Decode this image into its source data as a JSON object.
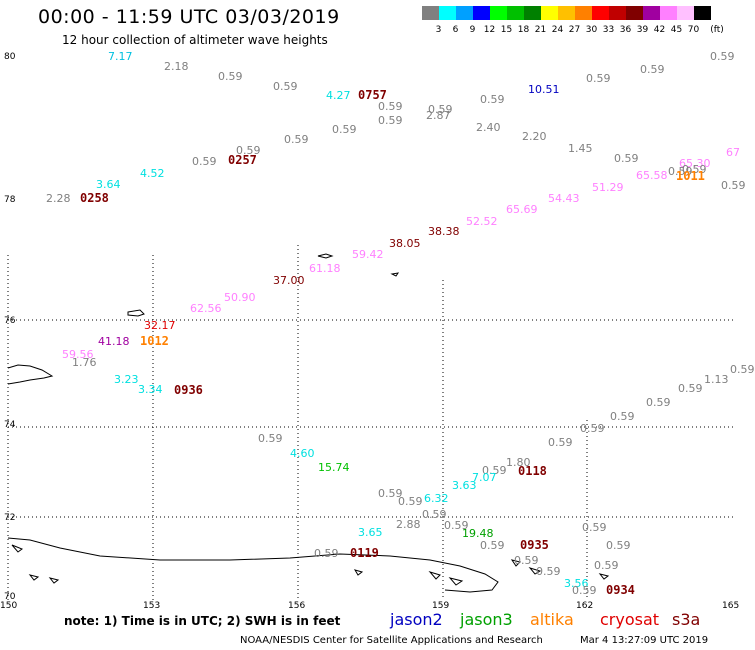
{
  "title": "00:00 - 11:59 UTC 03/03/2019",
  "subtitle": "12 hour collection of altimeter wave heights",
  "scale": {
    "unit": "(ft)",
    "bins": [
      {
        "label": "3",
        "color": "#808080"
      },
      {
        "label": "6",
        "color": "#00ffff"
      },
      {
        "label": "9",
        "color": "#00a0ff"
      },
      {
        "label": "12",
        "color": "#0000ff"
      },
      {
        "label": "15",
        "color": "#00ff00"
      },
      {
        "label": "18",
        "color": "#00c000"
      },
      {
        "label": "21",
        "color": "#008000"
      },
      {
        "label": "24",
        "color": "#ffff00"
      },
      {
        "label": "27",
        "color": "#ffc000"
      },
      {
        "label": "30",
        "color": "#ff8000"
      },
      {
        "label": "33",
        "color": "#ff0000"
      },
      {
        "label": "36",
        "color": "#c00000"
      },
      {
        "label": "39",
        "color": "#800000"
      },
      {
        "label": "42",
        "color": "#a000a0"
      },
      {
        "label": "45",
        "color": "#ff80ff"
      },
      {
        "label": "70",
        "color": "#ffc0ff"
      },
      {
        "label": "",
        "color": "#000000"
      }
    ]
  },
  "lat_labels": [
    "80",
    "78",
    "76",
    "74",
    "72",
    "70"
  ],
  "lon_labels": [
    "150",
    "153",
    "156",
    "159",
    "162",
    "165"
  ],
  "wave_heights": [
    {
      "v": "7.17",
      "c": "#00c0e0"
    },
    {
      "v": "2.18",
      "c": "#808080"
    },
    {
      "v": "0.59",
      "c": "#808080"
    },
    {
      "v": "0.59",
      "c": "#808080"
    },
    {
      "v": "4.27",
      "c": "#00e0e0"
    },
    {
      "v": "0.59",
      "c": "#808080"
    },
    {
      "v": "0.59",
      "c": "#808080"
    },
    {
      "v": "0.59",
      "c": "#808080"
    },
    {
      "v": "10.51",
      "c": "#0000c0"
    },
    {
      "v": "0.59",
      "c": "#808080"
    },
    {
      "v": "0.59",
      "c": "#808080"
    },
    {
      "v": "0.59",
      "c": "#808080"
    },
    {
      "v": "0.59",
      "c": "#808080"
    },
    {
      "v": "0.59",
      "c": "#808080"
    },
    {
      "v": "2.87",
      "c": "#808080"
    },
    {
      "v": "2.40",
      "c": "#808080"
    },
    {
      "v": "0.59",
      "c": "#808080"
    },
    {
      "v": "0.59",
      "c": "#808080"
    },
    {
      "v": "2.20",
      "c": "#808080"
    },
    {
      "v": "0.59",
      "c": "#808080"
    },
    {
      "v": "1.45",
      "c": "#808080"
    },
    {
      "v": "0.59",
      "c": "#808080"
    },
    {
      "v": "65.30",
      "c": "#ff80ff"
    },
    {
      "v": "67",
      "c": "#ff80ff"
    },
    {
      "v": "0.59",
      "c": "#808080"
    },
    {
      "v": "65.58",
      "c": "#ff80ff"
    },
    {
      "v": "0.59",
      "c": "#808080"
    },
    {
      "v": "0.59",
      "c": "#808080"
    },
    {
      "v": "3.64",
      "c": "#00e0e0"
    },
    {
      "v": "4.52",
      "c": "#00e0e0"
    },
    {
      "v": "51.29",
      "c": "#ff80ff"
    },
    {
      "v": "54.43",
      "c": "#ff80ff"
    },
    {
      "v": "2.28",
      "c": "#808080"
    },
    {
      "v": "65.69",
      "c": "#ff80ff"
    },
    {
      "v": "52.52",
      "c": "#ff80ff"
    },
    {
      "v": "38.38",
      "c": "#800000"
    },
    {
      "v": "38.05",
      "c": "#800000"
    },
    {
      "v": "59.42",
      "c": "#ff80ff"
    },
    {
      "v": "61.18",
      "c": "#ff80ff"
    },
    {
      "v": "37.00",
      "c": "#800000"
    },
    {
      "v": "50.90",
      "c": "#ff80ff"
    },
    {
      "v": "62.56",
      "c": "#ff80ff"
    },
    {
      "v": "32.17",
      "c": "#e00000"
    },
    {
      "v": "41.18",
      "c": "#a000a0"
    },
    {
      "v": "59.56",
      "c": "#ff80ff"
    },
    {
      "v": "1.76",
      "c": "#808080"
    },
    {
      "v": "3.23",
      "c": "#00e0e0"
    },
    {
      "v": "3.34",
      "c": "#00e0e0"
    },
    {
      "v": "0.59",
      "c": "#808080"
    },
    {
      "v": "0.59",
      "c": "#808080"
    },
    {
      "v": "1.13",
      "c": "#808080"
    },
    {
      "v": "0.59",
      "c": "#808080"
    },
    {
      "v": "0.59",
      "c": "#808080"
    },
    {
      "v": "0.59",
      "c": "#808080"
    },
    {
      "v": "0.59",
      "c": "#808080"
    },
    {
      "v": "4.60",
      "c": "#00e0e0"
    },
    {
      "v": "15.74",
      "c": "#00c000"
    },
    {
      "v": "1.80",
      "c": "#808080"
    },
    {
      "v": "0.59",
      "c": "#808080"
    },
    {
      "v": "7.07",
      "c": "#00e0e0"
    },
    {
      "v": "3.63",
      "c": "#00e0e0"
    },
    {
      "v": "0.59",
      "c": "#808080"
    },
    {
      "v": "0.59",
      "c": "#808080"
    },
    {
      "v": "6.32",
      "c": "#00e0e0"
    },
    {
      "v": "0.59",
      "c": "#808080"
    },
    {
      "v": "0.59",
      "c": "#808080"
    },
    {
      "v": "3.65",
      "c": "#00e0e0"
    },
    {
      "v": "2.88",
      "c": "#808080"
    },
    {
      "v": "0.59",
      "c": "#808080"
    },
    {
      "v": "19.48",
      "c": "#00a000"
    },
    {
      "v": "0.59",
      "c": "#808080"
    },
    {
      "v": "0.59",
      "c": "#808080"
    },
    {
      "v": "3.56",
      "c": "#00e0e0"
    },
    {
      "v": "0.59",
      "c": "#808080"
    },
    {
      "v": "0.59",
      "c": "#808080"
    },
    {
      "v": "0.59",
      "c": "#808080"
    },
    {
      "v": "0.59",
      "c": "#808080"
    },
    {
      "v": "0.59",
      "c": "#808080"
    },
    {
      "v": "0.59",
      "c": "#808080"
    }
  ],
  "pass_times": [
    {
      "v": "0757",
      "c": "#800000"
    },
    {
      "v": "0257",
      "c": "#800000"
    },
    {
      "v": "0258",
      "c": "#800000"
    },
    {
      "v": "1011",
      "c": "#ff8000"
    },
    {
      "v": "1012",
      "c": "#ff8000"
    },
    {
      "v": "0936",
      "c": "#800000"
    },
    {
      "v": "0118",
      "c": "#800000"
    },
    {
      "v": "0935",
      "c": "#800000"
    },
    {
      "v": "0119",
      "c": "#800000"
    },
    {
      "v": "0934",
      "c": "#800000"
    }
  ],
  "note": "note: 1) Time is in UTC; 2) SWH is in feet",
  "missions": [
    {
      "name": "jason2",
      "color": "#0000c0"
    },
    {
      "name": "jason3",
      "color": "#00a000"
    },
    {
      "name": "altika",
      "color": "#ff8000"
    },
    {
      "name": "cryosat",
      "color": "#e00000"
    },
    {
      "name": "s3a",
      "color": "#800000"
    }
  ],
  "credit": "NOAA/NESDIS Center for Satellite Applications and Research",
  "timestamp": "Mar  4 13:27:09 UTC 2019"
}
